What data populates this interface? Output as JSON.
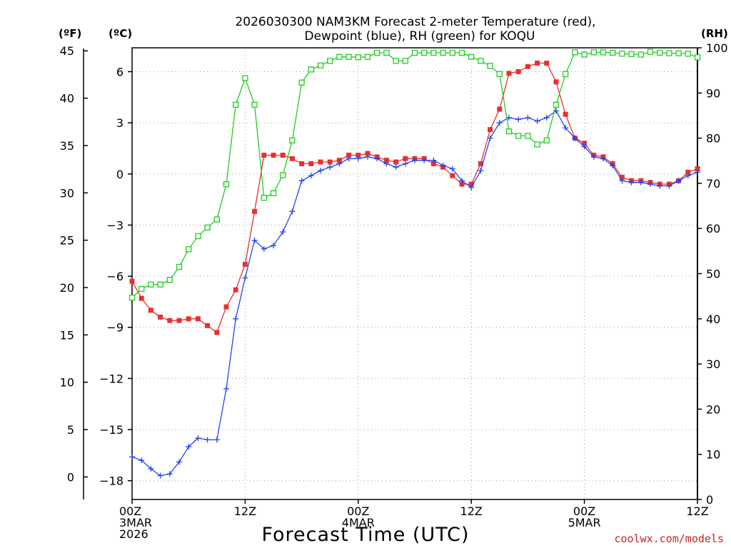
{
  "chart_data": {
    "type": "line",
    "title": [
      "2026030300 NAM3KM Forecast 2-meter Temperature (red),",
      "Dewpoint (blue), RH (green) for KOQU"
    ],
    "xlabel": "Forecast Time (UTC)",
    "credit": "coolwx.com/models",
    "units": {
      "fahrenheit": "(ºF)",
      "celsius": "(ºC)",
      "rh": "(RH)"
    },
    "x_hours_range": [
      0,
      60
    ],
    "x_ticks": [
      {
        "hour": 0,
        "lines": [
          "00Z",
          "3MAR",
          "2026"
        ]
      },
      {
        "hour": 12,
        "lines": [
          "12Z"
        ]
      },
      {
        "hour": 24,
        "lines": [
          "00Z",
          "4MAR"
        ]
      },
      {
        "hour": 36,
        "lines": [
          "12Z"
        ]
      },
      {
        "hour": 48,
        "lines": [
          "00Z",
          "5MAR"
        ]
      },
      {
        "hour": 60,
        "lines": [
          "12Z"
        ]
      }
    ],
    "ylim_c": [
      -19.1,
      7.4
    ],
    "y_ticks_c": [
      "6",
      "3",
      "0",
      "−3",
      "−6",
      "−9",
      "−12",
      "−15",
      "−18"
    ],
    "y_ticks_f": [
      "45",
      "40",
      "35",
      "30",
      "25",
      "20",
      "15",
      "10",
      "5",
      "0"
    ],
    "ylim_rh": [
      0,
      100
    ],
    "y_ticks_rh": [
      "100",
      "90",
      "80",
      "70",
      "60",
      "50",
      "40",
      "30",
      "20",
      "10",
      "0"
    ],
    "hours": [
      0,
      1,
      2,
      3,
      4,
      5,
      6,
      7,
      8,
      9,
      10,
      11,
      12,
      13,
      14,
      15,
      16,
      17,
      18,
      19,
      20,
      21,
      22,
      23,
      24,
      25,
      26,
      27,
      28,
      29,
      30,
      31,
      32,
      33,
      34,
      35,
      36,
      37,
      38,
      39,
      40,
      41,
      42,
      43,
      44,
      45,
      46,
      47,
      48,
      49,
      50,
      51,
      52,
      53,
      54,
      55,
      56,
      57,
      58,
      59,
      60
    ],
    "series": [
      {
        "name": "Temperature",
        "unit": "C",
        "color": "#e83030",
        "marker": "filled-square",
        "values": [
          -6.3,
          -7.3,
          -8.0,
          -8.4,
          -8.6,
          -8.6,
          -8.5,
          -8.5,
          -8.9,
          -9.3,
          -7.8,
          -6.8,
          -5.3,
          -2.2,
          1.1,
          1.1,
          1.1,
          0.9,
          0.6,
          0.6,
          0.7,
          0.7,
          0.8,
          1.1,
          1.1,
          1.2,
          1.0,
          0.8,
          0.7,
          0.9,
          0.9,
          0.9,
          0.6,
          0.4,
          -0.1,
          -0.6,
          -0.6,
          0.6,
          2.6,
          3.8,
          5.9,
          6.0,
          6.3,
          6.5,
          6.5,
          5.4,
          3.5,
          2.1,
          1.8,
          1.1,
          1.0,
          0.6,
          -0.2,
          -0.4,
          -0.4,
          -0.5,
          -0.6,
          -0.6,
          -0.4,
          0.1,
          0.3
        ]
      },
      {
        "name": "Dewpoint",
        "unit": "C",
        "color": "#2244ee",
        "marker": "plus",
        "values": [
          -16.6,
          -16.8,
          -17.3,
          -17.7,
          -17.6,
          -16.9,
          -16.0,
          -15.5,
          -15.6,
          -15.6,
          -12.6,
          -8.5,
          -6.1,
          -3.9,
          -4.4,
          -4.2,
          -3.4,
          -2.2,
          -0.4,
          -0.1,
          0.2,
          0.4,
          0.6,
          0.9,
          0.9,
          1.0,
          0.9,
          0.6,
          0.4,
          0.6,
          0.8,
          0.8,
          0.8,
          0.5,
          0.3,
          -0.4,
          -0.8,
          0.2,
          2.1,
          3.0,
          3.3,
          3.2,
          3.3,
          3.1,
          3.3,
          3.7,
          2.7,
          2.1,
          1.6,
          1.0,
          0.9,
          0.5,
          -0.4,
          -0.5,
          -0.5,
          -0.6,
          -0.7,
          -0.7,
          -0.4,
          -0.1,
          0.1
        ]
      },
      {
        "name": "RH",
        "unit": "%",
        "color": "#22cc22",
        "marker": "open-square",
        "values": [
          44.7,
          46.6,
          47.6,
          47.6,
          48.6,
          51.5,
          55.4,
          58.3,
          60.2,
          62.0,
          69.8,
          87.4,
          93.3,
          87.4,
          66.8,
          67.8,
          71.8,
          79.5,
          92.3,
          95.2,
          96.1,
          97.1,
          98.0,
          98.0,
          97.9,
          98.0,
          98.9,
          98.9,
          97.1,
          97.1,
          98.9,
          98.9,
          98.9,
          98.9,
          98.9,
          98.9,
          98.0,
          97.1,
          96.0,
          94.2,
          81.5,
          80.5,
          80.5,
          78.6,
          79.5,
          87.4,
          94.2,
          99.0,
          98.5,
          99.0,
          99.0,
          98.9,
          98.7,
          98.6,
          98.5,
          99.1,
          98.9,
          98.8,
          98.8,
          98.7,
          97.9
        ]
      }
    ]
  }
}
